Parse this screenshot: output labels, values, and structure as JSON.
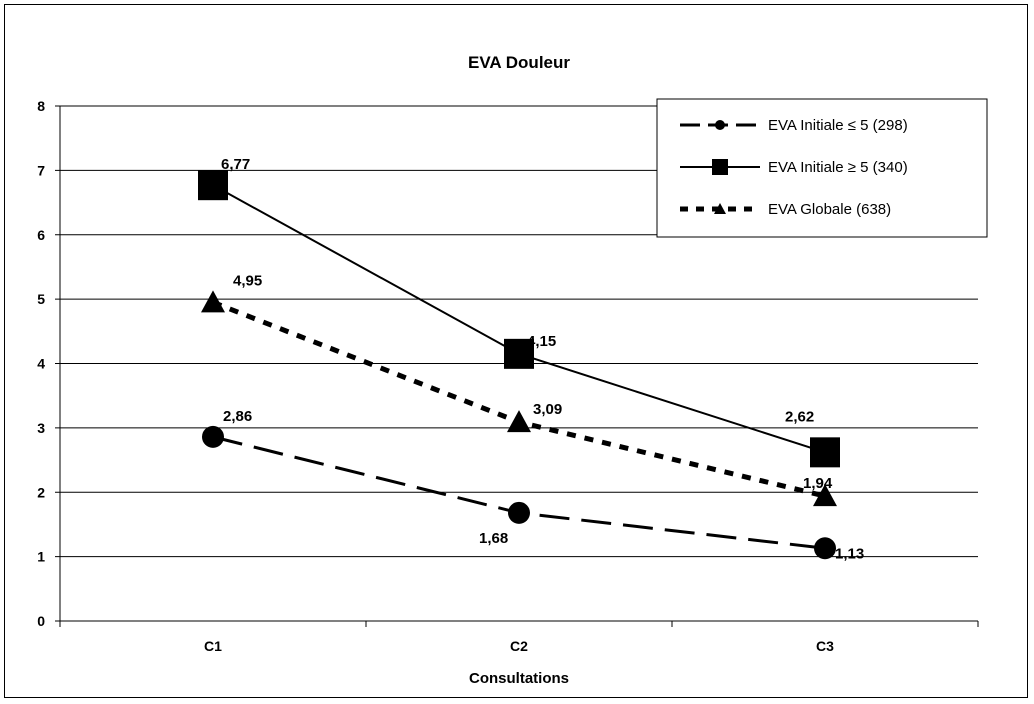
{
  "chart_data": {
    "type": "line",
    "title": "EVA Douleur",
    "xlabel": "Consultations",
    "ylabel": "",
    "categories": [
      "C1",
      "C2",
      "C3"
    ],
    "ylim": [
      0,
      8
    ],
    "yticks": [
      "0",
      "1",
      "2",
      "3",
      "4",
      "5",
      "6",
      "7",
      "8"
    ],
    "grid": true,
    "legend_position": "top-right",
    "series": [
      {
        "name": "EVA Initiale ≤ 5 (298)",
        "values": [
          2.86,
          1.68,
          1.13
        ],
        "labels": [
          "2,86",
          "1,68",
          "1,13"
        ],
        "marker": "circle",
        "line_style": "long-dash",
        "color": "#000000"
      },
      {
        "name": "EVA Initiale ≥ 5 (340)",
        "values": [
          6.77,
          4.15,
          2.62
        ],
        "labels": [
          "6,77",
          "4,15",
          "2,62"
        ],
        "marker": "square",
        "line_style": "solid",
        "color": "#000000"
      },
      {
        "name": "EVA Globale (638)",
        "values": [
          4.95,
          3.09,
          1.94
        ],
        "labels": [
          "4,95",
          "3,09",
          "1,94"
        ],
        "marker": "triangle",
        "line_style": "short-dash",
        "color": "#000000"
      }
    ]
  }
}
